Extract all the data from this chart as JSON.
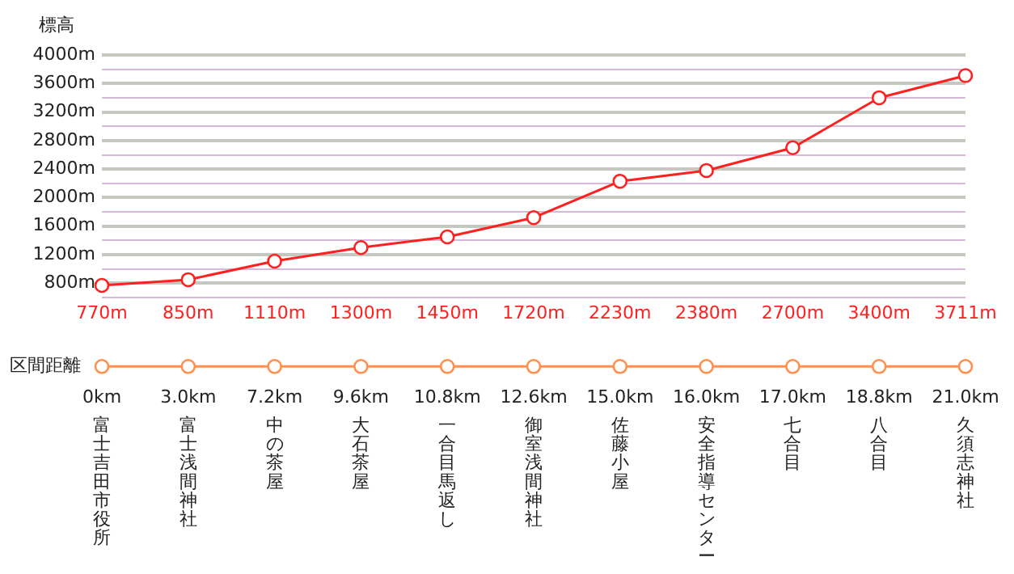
{
  "chart_data": [
    {
      "type": "line",
      "ylabel": "標高",
      "categories": [
        null,
        null,
        null,
        null,
        null,
        null,
        null,
        null,
        null,
        null,
        null
      ],
      "series": [
        {
          "color": "#ff2020",
          "values": [
            770,
            850,
            1110,
            1300,
            1450,
            1720,
            2230,
            2380,
            2700,
            3400,
            3711
          ],
          "value_labels": [
            "770m",
            "850m",
            "1110m",
            "1300m",
            "1450m",
            "1720m",
            "2230m",
            "2380m",
            "2700m",
            "3400m",
            "3711m"
          ]
        }
      ],
      "ylim": [
        600,
        4000
      ],
      "yticks": [
        {
          "value": 600,
          "label": null
        },
        {
          "value": 800,
          "label": "800m"
        },
        {
          "value": 1000,
          "label": null
        },
        {
          "value": 1200,
          "label": "1200m"
        },
        {
          "value": 1400,
          "label": null
        },
        {
          "value": 1600,
          "label": "1600m"
        },
        {
          "value": 1800,
          "label": null
        },
        {
          "value": 2000,
          "label": "2000m"
        },
        {
          "value": 2200,
          "label": null
        },
        {
          "value": 2400,
          "label": "2400m"
        },
        {
          "value": 2600,
          "label": null
        },
        {
          "value": 2800,
          "label": "2800m"
        },
        {
          "value": 3000,
          "label": null
        },
        {
          "value": 3200,
          "label": "3200m"
        },
        {
          "value": 3400,
          "label": null
        },
        {
          "value": 3600,
          "label": "3600m"
        },
        {
          "value": 3800,
          "label": null
        },
        {
          "value": 4000,
          "label": "4000m"
        }
      ],
      "grid": "y",
      "tick_labels": "y",
      "marker": "circle",
      "legend": false
    },
    {
      "type": "other",
      "ylabel": "区間距離",
      "categories": [
        "富士吉田市役所",
        "富士浅間神社",
        "中の茶屋",
        "大石茶屋",
        "一合目馬返し",
        "御室浅間神社",
        "佐藤小屋",
        "安全指導センター",
        "七合目",
        "八合目",
        "久須志神社"
      ],
      "series": [
        {
          "color": "#ff9050",
          "values": [
            0,
            3.0,
            7.2,
            9.6,
            10.8,
            12.6,
            15.0,
            16.0,
            17.0,
            18.8,
            21.0
          ],
          "value_labels": [
            "0km",
            "3.0km",
            "7.2km",
            "9.6km",
            "10.8km",
            "12.6km",
            "15.0km",
            "16.0km",
            "17.0km",
            "18.8km",
            "21.0km"
          ]
        }
      ],
      "legend": false
    }
  ]
}
